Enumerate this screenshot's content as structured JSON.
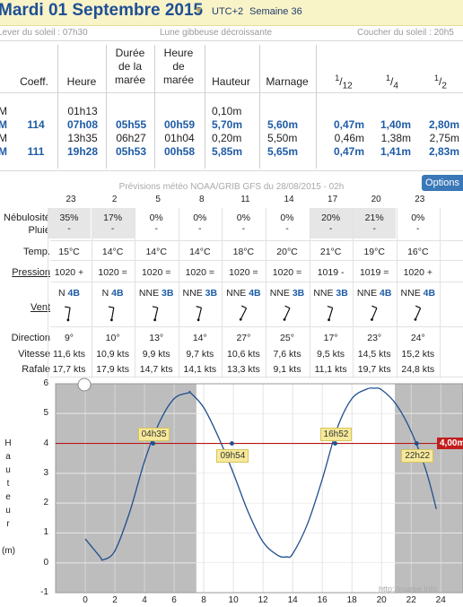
{
  "header": {
    "title": "Mardi 01 Septembre 2015",
    "utc": "UTC+2",
    "week": "Semaine 36",
    "sunrise": "Lever du soleil : 07h30",
    "moon": "Lune gibbeuse décroissante",
    "sunset": "Coucher du soleil : 20h5"
  },
  "tide_table": {
    "headers": {
      "coeff": "Coeff.",
      "heure": "Heure",
      "duree": [
        "Durée",
        "de la",
        "marée"
      ],
      "heure_maree": [
        "Heure",
        "de",
        "marée"
      ],
      "hauteur": "Hauteur",
      "marnage": "Marnage",
      "frac12": "1/12",
      "frac4": "1/4",
      "frac2": "1/2"
    },
    "rows": [
      {
        "type": "M",
        "coeff": "",
        "heure": "01h13",
        "duree": "",
        "heure_maree": "",
        "hauteur": "0,10m",
        "marnage": "",
        "f12": "",
        "f4": "",
        "f2": "",
        "bold": false
      },
      {
        "type": "M",
        "coeff": "114",
        "heure": "07h08",
        "duree": "05h55",
        "heure_maree": "00h59",
        "hauteur": "5,70m",
        "marnage": "5,60m",
        "f12": "0,47m",
        "f4": "1,40m",
        "f2": "2,80m",
        "bold": true
      },
      {
        "type": "M",
        "coeff": "",
        "heure": "13h35",
        "duree": "06h27",
        "heure_maree": "01h04",
        "hauteur": "0,20m",
        "marnage": "5,50m",
        "f12": "0,46m",
        "f4": "1,38m",
        "f2": "2,75m",
        "bold": false
      },
      {
        "type": "M",
        "coeff": "111",
        "heure": "19h28",
        "duree": "05h53",
        "heure_maree": "00h58",
        "hauteur": "5,85m",
        "marnage": "5,65m",
        "f12": "0,47m",
        "f4": "1,41m",
        "f2": "2,83m",
        "bold": true
      }
    ]
  },
  "weather": {
    "title": "Prévisions météo NOAA/GRIB GFS du 28/08/2015 - 02h",
    "options_label": "Options",
    "hours": [
      "23",
      "2",
      "5",
      "8",
      "11",
      "14",
      "17",
      "20",
      "23"
    ],
    "labels": {
      "nebulosite": "Nébulosité",
      "pluie": "Pluie",
      "temp": "Temp.",
      "pression": "Pression",
      "vent": "Vent",
      "direction": "Direction",
      "vitesse": "Vitesse",
      "rafale": "Rafale"
    },
    "columns": [
      {
        "neb": "35%",
        "pluie": "-",
        "temp": "15°C",
        "pression": "1020 +",
        "wdir": "N",
        "bf": "4B",
        "dir": "9°",
        "vit": "11,6 kts",
        "raf": "17,7 kts",
        "shade": true,
        "angle": 9
      },
      {
        "neb": "17%",
        "pluie": "-",
        "temp": "14°C",
        "pression": "1020 =",
        "wdir": "N",
        "bf": "4B",
        "dir": "10°",
        "vit": "10,9 kts",
        "raf": "17,9 kts",
        "shade": true,
        "angle": 10
      },
      {
        "neb": "0%",
        "pluie": "-",
        "temp": "14°C",
        "pression": "1020 =",
        "wdir": "NNE",
        "bf": "3B",
        "dir": "13°",
        "vit": "9,9 kts",
        "raf": "14,7 kts",
        "shade": false,
        "angle": 13
      },
      {
        "neb": "0%",
        "pluie": "-",
        "temp": "14°C",
        "pression": "1020 =",
        "wdir": "NNE",
        "bf": "3B",
        "dir": "14°",
        "vit": "9,7 kts",
        "raf": "14,1 kts",
        "shade": false,
        "angle": 14
      },
      {
        "neb": "0%",
        "pluie": "-",
        "temp": "18°C",
        "pression": "1020 =",
        "wdir": "NNE",
        "bf": "4B",
        "dir": "27°",
        "vit": "10,6 kts",
        "raf": "13,3 kts",
        "shade": false,
        "angle": 27
      },
      {
        "neb": "0%",
        "pluie": "-",
        "temp": "20°C",
        "pression": "1020 =",
        "wdir": "NNE",
        "bf": "3B",
        "dir": "25°",
        "vit": "7,6 kts",
        "raf": "9,1 kts",
        "shade": false,
        "angle": 25
      },
      {
        "neb": "20%",
        "pluie": "-",
        "temp": "21°C",
        "pression": "1019 -",
        "wdir": "NNE",
        "bf": "3B",
        "dir": "17°",
        "vit": "9,5 kts",
        "raf": "11,1 kts",
        "shade": true,
        "angle": 17
      },
      {
        "neb": "21%",
        "pluie": "-",
        "temp": "19°C",
        "pression": "1019 =",
        "wdir": "NNE",
        "bf": "4B",
        "dir": "23°",
        "vit": "14,5 kts",
        "raf": "19,7 kts",
        "shade": true,
        "angle": 23
      },
      {
        "neb": "0%",
        "pluie": "-",
        "temp": "16°C",
        "pression": "1020 +",
        "wdir": "NNE",
        "bf": "4B",
        "dir": "24°",
        "vit": "15,2 kts",
        "raf": "24,8 kts",
        "shade": false,
        "angle": 24
      }
    ]
  },
  "chart_data": {
    "type": "line",
    "y_axis_label": "Hauteur (m)",
    "x_ticks": [
      0,
      2,
      4,
      6,
      8,
      10,
      12,
      14,
      16,
      18,
      20,
      22,
      24
    ],
    "y_ticks": [
      -1,
      0,
      1,
      2,
      3,
      4,
      5,
      6
    ],
    "xlim": [
      -2,
      25.5
    ],
    "ylim": [
      -1,
      6
    ],
    "night_periods": [
      [
        -2,
        7.5
      ],
      [
        20.9,
        25.5
      ]
    ],
    "threshold": {
      "value": 4.0,
      "label": "4,00m"
    },
    "series": [
      {
        "x": [
          0,
          1,
          1.2,
          2,
          3,
          4,
          5,
          6,
          7,
          7.1,
          8,
          9,
          10,
          11,
          12,
          13,
          13.6,
          14,
          15,
          16,
          17,
          18,
          19,
          19.5,
          20,
          21,
          22,
          23,
          23.7
        ],
        "y": [
          0.8,
          0.2,
          0.1,
          0.4,
          1.7,
          3.4,
          4.7,
          5.5,
          5.7,
          5.7,
          5.2,
          4.2,
          3.0,
          1.7,
          0.7,
          0.25,
          0.2,
          0.3,
          1.3,
          2.8,
          4.5,
          5.5,
          5.82,
          5.85,
          5.8,
          5.3,
          4.4,
          3.1,
          1.8
        ]
      }
    ],
    "annotations": [
      {
        "time": 4.58,
        "value": 4.0,
        "label": "04h35"
      },
      {
        "time": 9.9,
        "value": 4.0,
        "label": "09h54"
      },
      {
        "time": 16.87,
        "value": 4.0,
        "label": "16h52"
      },
      {
        "time": 22.37,
        "value": 4.0,
        "label": "22h22"
      }
    ],
    "credit": "http://maree.info"
  }
}
